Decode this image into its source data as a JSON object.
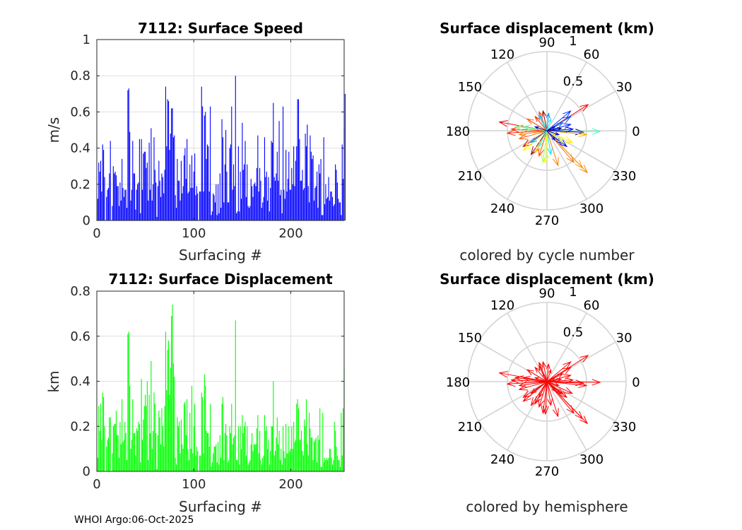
{
  "footer": "WHOI Argo:06-Oct-2025",
  "chart_data": [
    {
      "type": "bar",
      "title": "7112: Surface Speed",
      "xlabel": "Surfacing #",
      "ylabel": "m/s",
      "xlim": [
        0,
        255
      ],
      "ylim": [
        0,
        1
      ],
      "xticks": [
        0,
        100,
        200
      ],
      "yticks": [
        0,
        0.2,
        0.4,
        0.6,
        0.8,
        1
      ],
      "grid": true,
      "color": "#0000ff",
      "values": [
        0.12,
        0.32,
        0.27,
        0.33,
        0.16,
        0.42,
        0.39,
        0.24,
        0,
        0.13,
        0.17,
        0.18,
        0.26,
        0.44,
        0,
        0.08,
        0.3,
        0.26,
        0.27,
        0.25,
        0.19,
        0.19,
        0.08,
        0.21,
        0.11,
        0.34,
        0.18,
        0.13,
        0.17,
        0.17,
        0.07,
        0.72,
        0.73,
        0.49,
        0.11,
        0.17,
        0.44,
        0.26,
        0.26,
        0.06,
        0.17,
        0.2,
        0.21,
        0.45,
        0.04,
        0.45,
        0.17,
        0.37,
        0.38,
        0.38,
        0.29,
        0.32,
        0.11,
        0.43,
        0.17,
        0.51,
        0.11,
        0.2,
        0.46,
        0.28,
        0.21,
        0.02,
        0.19,
        0.33,
        0.22,
        0.13,
        0.26,
        0.24,
        0.15,
        0.28,
        0.74,
        0.41,
        0.67,
        0.66,
        0.39,
        0.48,
        0.62,
        0.62,
        0.46,
        0.47,
        0.14,
        0.07,
        0.34,
        0.22,
        0.22,
        0.11,
        0.33,
        0.15,
        0.19,
        0.36,
        0.4,
        0.23,
        0.45,
        0.15,
        0.16,
        0.31,
        0.18,
        0.36,
        0.18,
        0.27,
        0.37,
        0.14,
        0.19,
        0.15,
        0,
        0.16,
        0.16,
        0.74,
        0.63,
        0.16,
        0.58,
        0.6,
        0.34,
        0.42,
        0.41,
        0.16,
        0.63,
        0.03,
        0.05,
        0.15,
        0.14,
        0.1,
        0.2,
        0.03,
        0.2,
        0.04,
        0.26,
        0.07,
        0.56,
        0.46,
        0.1,
        0.31,
        0.5,
        0.27,
        0.1,
        0.1,
        0.4,
        0.42,
        0.63,
        0.17,
        0.31,
        0.19,
        0.8,
        0.04,
        0.05,
        0.41,
        0.05,
        0.27,
        0.12,
        0.54,
        0.28,
        0.31,
        0.44,
        0.13,
        0.31,
        0.08,
        0.07,
        0.08,
        0.23,
        0.19,
        0.13,
        0.2,
        0.21,
        0.19,
        0.29,
        0.47,
        0.16,
        0.29,
        0.22,
        0.07,
        0.1,
        0.13,
        0.46,
        0.24,
        0.27,
        0.11,
        0.24,
        0.05,
        0.18,
        0.44,
        0.43,
        0.65,
        0.24,
        0.22,
        0.26,
        0.38,
        0.22,
        0.55,
        0.14,
        0.17,
        0.04,
        0.63,
        0.17,
        0.12,
        0.39,
        0.16,
        0.23,
        0.38,
        0.17,
        0.17,
        0.29,
        0.2,
        0.41,
        0.19,
        0.33,
        0.41,
        0.67,
        0.67,
        0.45,
        0.22,
        0.22,
        0.28,
        0.17,
        0.18,
        0.48,
        0.41,
        0.53,
        0.19,
        0.1,
        0.47,
        0.38,
        0.34,
        0.36,
        0.11,
        0.18,
        0.19,
        0.27,
        0.07,
        0.31,
        0.26,
        0.34,
        0.03,
        0.03,
        0.46,
        0.09,
        0.2,
        0.12,
        0.13,
        0.24,
        0.11,
        0.16,
        0.16,
        0.13,
        0.08,
        0.09,
        0.31,
        0.28,
        0.21,
        0.12,
        0.1,
        0.1,
        0.03,
        0.42,
        0.23,
        0.51,
        0.7
      ]
    },
    {
      "type": "bar",
      "title": "7112: Surface Displacement",
      "xlabel": "Surfacing #",
      "ylabel": "km",
      "xlim": [
        0,
        255
      ],
      "ylim": [
        0,
        0.8
      ],
      "xticks": [
        0,
        100,
        200
      ],
      "yticks": [
        0,
        0.2,
        0.4,
        0.6,
        0.8
      ],
      "grid": true,
      "color": "#00ff00",
      "values": [
        0.06,
        0.29,
        0.18,
        0.3,
        0.14,
        0.35,
        0.33,
        0.2,
        0,
        0.11,
        0.14,
        0.15,
        0.24,
        0.24,
        0,
        0.08,
        0.2,
        0.21,
        0.21,
        0.27,
        0.16,
        0.16,
        0.06,
        0.22,
        0.12,
        0.32,
        0.13,
        0.14,
        0.22,
        0.17,
        0.05,
        0.61,
        0.62,
        0.38,
        0.1,
        0.14,
        0.32,
        0.17,
        0.17,
        0.07,
        0.19,
        0.18,
        0.22,
        0.21,
        0.04,
        0.41,
        0.14,
        0.23,
        0.29,
        0.34,
        0.29,
        0.4,
        0.05,
        0.34,
        0.17,
        0.49,
        0.1,
        0.18,
        0.35,
        0.3,
        0.17,
        0.01,
        0.16,
        0.27,
        0.24,
        0.12,
        0.28,
        0.2,
        0.11,
        0.29,
        0.62,
        0.36,
        0.54,
        0.58,
        0.34,
        0.46,
        0.69,
        0.74,
        0.48,
        0.42,
        0.06,
        0.03,
        0.24,
        0.2,
        0.22,
        0.08,
        0.23,
        0.12,
        0.1,
        0.3,
        0.31,
        0.16,
        0.32,
        0.1,
        0.05,
        0.26,
        0.1,
        0.38,
        0.08,
        0.2,
        0.3,
        0.07,
        0.11,
        0.09,
        0,
        0.07,
        0.07,
        0.35,
        0.33,
        0.08,
        0.43,
        0.38,
        0.18,
        0.17,
        0.17,
        0.11,
        0.3,
        0.02,
        0.04,
        0.08,
        0.11,
        0.11,
        0.12,
        0.04,
        0.13,
        0.03,
        0.16,
        0.06,
        0.3,
        0.33,
        0.05,
        0.17,
        0.21,
        0.16,
        0.04,
        0.05,
        0.2,
        0.17,
        0.3,
        0.12,
        0.15,
        0.16,
        0.67,
        0.05,
        0.05,
        0.2,
        0.03,
        0.2,
        0.1,
        0.25,
        0.17,
        0.2,
        0.22,
        0.07,
        0.2,
        0.03,
        0.04,
        0.05,
        0.12,
        0.17,
        0.09,
        0.12,
        0.12,
        0.12,
        0.19,
        0.25,
        0.08,
        0.18,
        0.05,
        0.03,
        0.06,
        0.07,
        0.25,
        0.18,
        0.2,
        0.1,
        0.14,
        0.03,
        0.09,
        0.2,
        0.2,
        0.4,
        0.07,
        0.09,
        0.15,
        0.24,
        0.12,
        0.18,
        0.05,
        0.1,
        0.03,
        0.2,
        0.09,
        0.06,
        0.21,
        0.08,
        0.08,
        0.2,
        0.09,
        0.1,
        0.2,
        0.1,
        0.22,
        0.13,
        0.14,
        0.3,
        0.32,
        0.28,
        0.14,
        0.14,
        0.18,
        0.09,
        0.07,
        0.23,
        0.2,
        0.32,
        0.12,
        0.07,
        0.26,
        0.19,
        0.15,
        0.15,
        0.05,
        0.13,
        0.14,
        0.15,
        0.04,
        0.16,
        0.14,
        0.28,
        0.02,
        0.02,
        0.26,
        0.04,
        0.06,
        0.05,
        0.06,
        0.05,
        0.06,
        0.1,
        0.1,
        0.06,
        0.03,
        0.05,
        0.22,
        0.18,
        0.11,
        0.07,
        0.05,
        0.05,
        0.02,
        0.26,
        0.07,
        0.28,
        0.46
      ]
    },
    {
      "type": "compass",
      "title": "Surface displacement (km)",
      "xlabel": "colored by cycle number",
      "rlim": [
        0,
        1
      ],
      "rticks": [
        0.5,
        1
      ],
      "theta_ticks": [
        0,
        30,
        60,
        90,
        120,
        150,
        180,
        210,
        240,
        270,
        300,
        330
      ],
      "colormap": "jet",
      "cycle_range": [
        1,
        255
      ],
      "vectors": [
        {
          "u": 0.52,
          "v": 0.33,
          "cycle": 225
        },
        {
          "u": -0.6,
          "v": 0.11,
          "cycle": 230
        },
        {
          "u": 0.67,
          "v": -0.01,
          "cycle": 110
        },
        {
          "u": 0.51,
          "v": -0.53,
          "cycle": 190
        },
        {
          "u": 0.45,
          "v": -0.47,
          "cycle": 185
        },
        {
          "u": 0.34,
          "v": -0.4,
          "cycle": 195
        },
        {
          "u": 0.14,
          "v": -0.44,
          "cycle": 192
        },
        {
          "u": -0.02,
          "v": -0.41,
          "cycle": 160
        },
        {
          "u": 0.46,
          "v": -0.02,
          "cycle": 5
        },
        {
          "u": 0.5,
          "v": -0.05,
          "cycle": 180
        },
        {
          "u": 0.3,
          "v": 0.08,
          "cycle": 40
        },
        {
          "u": 0.3,
          "v": 0.18,
          "cycle": 55
        },
        {
          "u": 0.3,
          "v": 0.25,
          "cycle": 45
        },
        {
          "u": 0.2,
          "v": 0.1,
          "cycle": 60
        },
        {
          "u": 0.33,
          "v": 0.02,
          "cycle": 30
        },
        {
          "u": 0.18,
          "v": -0.16,
          "cycle": 35
        },
        {
          "u": 0.25,
          "v": -0.2,
          "cycle": 30
        },
        {
          "u": 0.2,
          "v": -0.15,
          "cycle": 150
        },
        {
          "u": 0.32,
          "v": -0.15,
          "cycle": 165
        },
        {
          "u": -0.05,
          "v": 0.25,
          "cycle": 250
        },
        {
          "u": -0.1,
          "v": 0.24,
          "cycle": 205
        },
        {
          "u": -0.15,
          "v": 0.18,
          "cycle": 215
        },
        {
          "u": -0.25,
          "v": 0.15,
          "cycle": 200
        },
        {
          "u": -0.1,
          "v": 0.2,
          "cycle": 80
        },
        {
          "u": 0.02,
          "v": 0.22,
          "cycle": 70
        },
        {
          "u": -0.45,
          "v": 0.02,
          "cycle": 210
        },
        {
          "u": -0.5,
          "v": -0.03,
          "cycle": 215
        },
        {
          "u": -0.4,
          "v": 0.05,
          "cycle": 130
        },
        {
          "u": -0.3,
          "v": 0.05,
          "cycle": 120
        },
        {
          "u": -0.35,
          "v": -0.05,
          "cycle": 190
        },
        {
          "u": -0.35,
          "v": -0.1,
          "cycle": 200
        },
        {
          "u": -0.3,
          "v": -0.2,
          "cycle": 230
        },
        {
          "u": -0.3,
          "v": -0.25,
          "cycle": 160
        },
        {
          "u": -0.2,
          "v": -0.3,
          "cycle": 250
        },
        {
          "u": -0.15,
          "v": -0.28,
          "cycle": 170
        },
        {
          "u": -0.1,
          "v": -0.32,
          "cycle": 205
        },
        {
          "u": -0.05,
          "v": -0.4,
          "cycle": 140
        },
        {
          "u": 0.05,
          "v": -0.3,
          "cycle": 90
        },
        {
          "u": -0.2,
          "v": -0.15,
          "cycle": 75
        },
        {
          "u": -0.1,
          "v": -0.2,
          "cycle": 110
        },
        {
          "u": 0.15,
          "v": -0.05,
          "cycle": 20
        },
        {
          "u": 0.1,
          "v": 0.05,
          "cycle": 10
        },
        {
          "u": -0.05,
          "v": 0.1,
          "cycle": 100
        },
        {
          "u": 0.05,
          "v": 0.15,
          "cycle": 95
        },
        {
          "u": 0.1,
          "v": -0.12,
          "cycle": 25
        },
        {
          "u": -0.15,
          "v": 0.05,
          "cycle": 15
        },
        {
          "u": 0.18,
          "v": 0.03,
          "cycle": 2
        }
      ]
    },
    {
      "type": "compass",
      "title": "Surface displacement (km)",
      "xlabel": "colored by hemisphere",
      "rlim": [
        0,
        1
      ],
      "rticks": [
        0.5,
        1
      ],
      "theta_ticks": [
        0,
        30,
        60,
        90,
        120,
        150,
        180,
        210,
        240,
        270,
        300,
        330
      ],
      "color": "#ff0000",
      "vectors_source": "same displacement vectors as compass plot 1"
    }
  ]
}
